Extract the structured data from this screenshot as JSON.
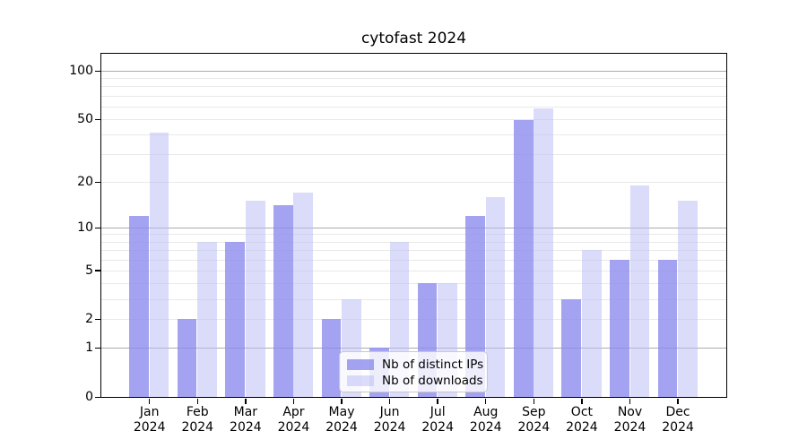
{
  "chart_data": {
    "type": "bar",
    "title": "cytofast 2024",
    "categories": [
      "Jan 2024",
      "Feb 2024",
      "Mar 2024",
      "Apr 2024",
      "May 2024",
      "Jun 2024",
      "Jul 2024",
      "Aug 2024",
      "Sep 2024",
      "Oct 2024",
      "Nov 2024",
      "Dec 2024"
    ],
    "series": [
      {
        "name": "Nb of distinct IPs",
        "color": "#8c8cee",
        "opacity": 0.8,
        "values": [
          12,
          2,
          8,
          14,
          2,
          1,
          4,
          12,
          49,
          3,
          6,
          6
        ]
      },
      {
        "name": "Nb of downloads",
        "color": "#bebef5",
        "opacity": 0.55,
        "values": [
          41,
          8,
          15,
          17,
          3,
          8,
          4,
          16,
          58,
          7,
          19,
          15
        ]
      }
    ],
    "yscale": "log1p",
    "ylim": [
      0,
      128
    ],
    "yticks": [
      0,
      1,
      2,
      5,
      10,
      20,
      50,
      100
    ],
    "grid": {
      "major": [
        1,
        10,
        100
      ],
      "minor": [
        2,
        3,
        4,
        5,
        6,
        7,
        8,
        9,
        20,
        30,
        40,
        50,
        60,
        70,
        80,
        90
      ]
    },
    "legend_position": "bottom-center",
    "colors": {
      "axis": "#000000",
      "grid_major": "#ababab",
      "grid_minor": "#e9e9e9",
      "background": "#ffffff"
    }
  }
}
